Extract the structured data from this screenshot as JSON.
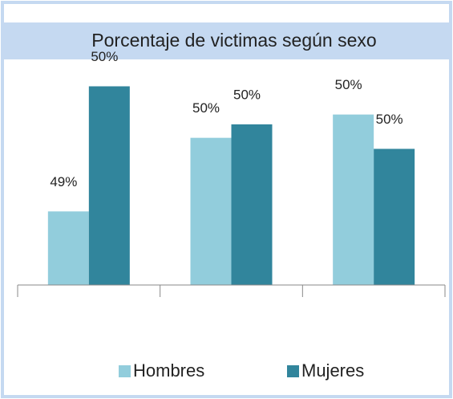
{
  "chart_data": {
    "type": "bar",
    "title": "Porcentaje de victimas  según sexo",
    "categories": [
      null,
      null,
      null
    ],
    "series": [
      {
        "name": "Hombres",
        "color": "#92cddc",
        "values": [
          49.4,
          50.0,
          50.19
        ],
        "value_labels": [
          "49%",
          "50%",
          "50%"
        ]
      },
      {
        "name": "Mujeres",
        "color": "#31859c",
        "values": [
          50.42,
          50.11,
          49.91
        ],
        "value_labels": [
          "50%",
          "50%",
          "50%"
        ]
      }
    ],
    "ylim": [
      48.8,
      50.6
    ],
    "legend": "bottom"
  }
}
